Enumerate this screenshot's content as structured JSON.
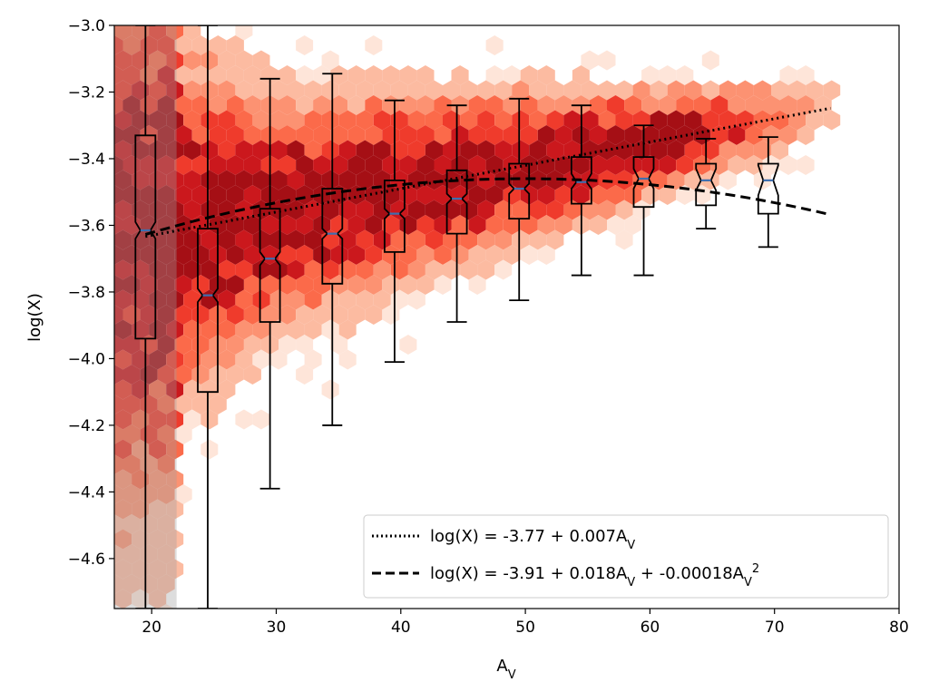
{
  "chart_data": {
    "type": "scatter",
    "subtype": "hexbin-with-notched-boxplots",
    "title": "",
    "xlabel": {
      "base": "A",
      "sub": "V"
    },
    "ylabel": "log(X)",
    "xlim": [
      17,
      80
    ],
    "ylim": [
      -4.75,
      -3.0
    ],
    "xticks": [
      20,
      30,
      40,
      50,
      60,
      70,
      80
    ],
    "yticks": [
      -4.6,
      -4.4,
      -4.2,
      -4.0,
      -3.8,
      -3.6,
      -3.4,
      -3.2,
      -3.0
    ],
    "grid": false,
    "hexbin_colormap": "Reds",
    "boxplots": [
      {
        "x": 19.5,
        "whisker_low": -4.75,
        "q1": -3.94,
        "median": -3.615,
        "q3": -3.33,
        "whisker_high": -3.0,
        "notch_low": -3.64,
        "notch_high": -3.59
      },
      {
        "x": 24.5,
        "whisker_low": -4.75,
        "q1": -4.1,
        "median": -3.81,
        "q3": -3.61,
        "whisker_high": -3.0,
        "notch_low": -3.83,
        "notch_high": -3.79
      },
      {
        "x": 29.5,
        "whisker_low": -4.39,
        "q1": -3.89,
        "median": -3.7,
        "q3": -3.55,
        "whisker_high": -3.16,
        "notch_low": -3.72,
        "notch_high": -3.68
      },
      {
        "x": 34.5,
        "whisker_low": -4.2,
        "q1": -3.775,
        "median": -3.625,
        "q3": -3.49,
        "whisker_high": -3.145,
        "notch_low": -3.64,
        "notch_high": -3.61
      },
      {
        "x": 39.5,
        "whisker_low": -4.01,
        "q1": -3.68,
        "median": -3.565,
        "q3": -3.465,
        "whisker_high": -3.225,
        "notch_low": -3.58,
        "notch_high": -3.55
      },
      {
        "x": 44.5,
        "whisker_low": -3.89,
        "q1": -3.625,
        "median": -3.52,
        "q3": -3.435,
        "whisker_high": -3.24,
        "notch_low": -3.535,
        "notch_high": -3.505
      },
      {
        "x": 49.5,
        "whisker_low": -3.825,
        "q1": -3.58,
        "median": -3.49,
        "q3": -3.415,
        "whisker_high": -3.22,
        "notch_low": -3.505,
        "notch_high": -3.475
      },
      {
        "x": 54.5,
        "whisker_low": -3.75,
        "q1": -3.535,
        "median": -3.47,
        "q3": -3.395,
        "whisker_high": -3.24,
        "notch_low": -3.49,
        "notch_high": -3.445
      },
      {
        "x": 59.5,
        "whisker_low": -3.75,
        "q1": -3.545,
        "median": -3.46,
        "q3": -3.395,
        "whisker_high": -3.3,
        "notch_low": -3.49,
        "notch_high": -3.43
      },
      {
        "x": 64.5,
        "whisker_low": -3.61,
        "q1": -3.54,
        "median": -3.465,
        "q3": -3.415,
        "whisker_high": -3.34,
        "notch_low": -3.495,
        "notch_high": -3.43
      },
      {
        "x": 69.5,
        "whisker_low": -3.665,
        "q1": -3.565,
        "median": -3.465,
        "q3": -3.415,
        "whisker_high": -3.335,
        "notch_low": -3.51,
        "notch_high": -3.42
      }
    ],
    "fits": [
      {
        "kind": "linear",
        "style": "dotted",
        "coefficients": [
          -3.77,
          0.007
        ],
        "x_range": [
          19.5,
          74.5
        ]
      },
      {
        "kind": "quadratic",
        "style": "dashed",
        "coefficients": [
          -3.91,
          0.018,
          -0.00018
        ],
        "x_range": [
          19.5,
          74.5
        ]
      }
    ],
    "legend": {
      "placement": "lower-right",
      "entries": [
        {
          "style": "dotted",
          "label_parts": [
            "log(X) = -3.77 + 0.007A",
            "V"
          ]
        },
        {
          "style": "dashed",
          "label_parts": [
            "log(X) = -3.91 + 0.018A",
            "V",
            " + -0.00018A",
            "V",
            "2"
          ]
        }
      ]
    }
  }
}
